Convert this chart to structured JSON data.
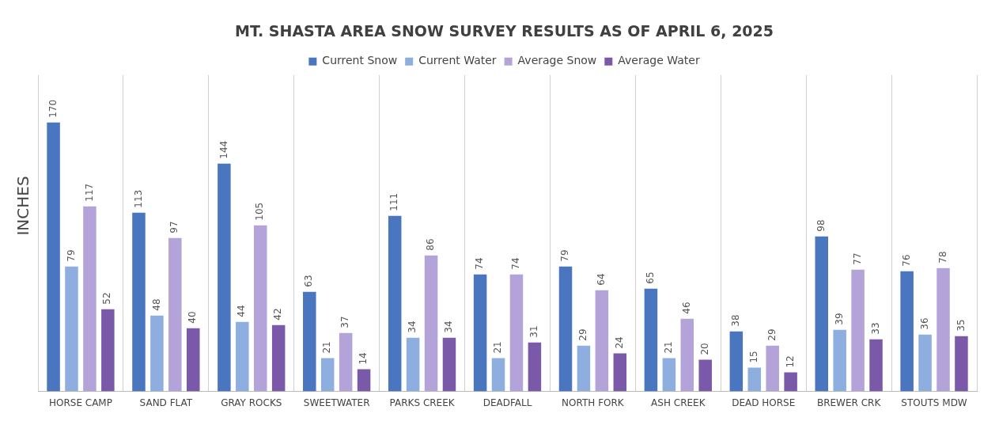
{
  "chart_data": {
    "type": "bar",
    "title": "MT. SHASTA AREA SNOW SURVEY RESULTS AS OF APRIL 6, 2025",
    "ylabel": "INCHES",
    "categories": [
      "HORSE CAMP",
      "SAND FLAT",
      "GRAY ROCKS",
      "SWEETWATER",
      "PARKS CREEK",
      "DEADFALL",
      "NORTH FORK",
      "ASH CREEK",
      "DEAD HORSE",
      "BREWER CRK",
      "STOUTS MDW"
    ],
    "series": [
      {
        "name": "Current Snow",
        "color": "#4a76c0",
        "values": [
          170,
          113,
          144,
          63,
          111,
          74,
          79,
          65,
          38,
          98,
          76
        ]
      },
      {
        "name": "Current Water",
        "color": "#8eaee0",
        "values": [
          79,
          48,
          44,
          21,
          34,
          21,
          29,
          21,
          15,
          39,
          36
        ]
      },
      {
        "name": "Average Snow",
        "color": "#b3a3d8",
        "values": [
          117,
          97,
          105,
          37,
          86,
          74,
          64,
          46,
          29,
          77,
          78
        ]
      },
      {
        "name": "Average Water",
        "color": "#7a5aa8",
        "values": [
          52,
          40,
          42,
          14,
          34,
          31,
          24,
          20,
          12,
          33,
          35
        ]
      }
    ],
    "data_labels": true,
    "grid": "x",
    "legend": "top",
    "tick_labels": "x"
  }
}
